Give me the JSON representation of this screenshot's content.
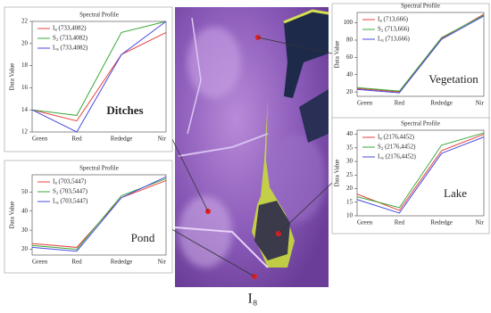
{
  "chart_data": [
    {
      "type": "line",
      "title": "Spectral Profile",
      "y_label": "Data Value",
      "annotation": "Ditches",
      "categories": [
        "Green",
        "Red",
        "Rededge",
        "Nir"
      ],
      "series": [
        {
          "name": "I₈ (733,4082)",
          "color": "#e8413c",
          "values": [
            14,
            13,
            19,
            21
          ]
        },
        {
          "name": "S₂ (733,4082)",
          "color": "#3aa83a",
          "values": [
            14,
            13.5,
            21,
            22
          ]
        },
        {
          "name": "L₈ (733,4082)",
          "color": "#4a4ae0",
          "values": [
            14,
            12,
            19,
            22
          ]
        }
      ],
      "ylim": [
        12,
        22
      ],
      "yticks": [
        12,
        14,
        16,
        18,
        20,
        22
      ]
    },
    {
      "type": "line",
      "title": "Spectral Profile",
      "y_label": "Data Value",
      "annotation": "Vegetation",
      "categories": [
        "Green",
        "Red",
        "Rededge",
        "Nir"
      ],
      "series": [
        {
          "name": "I₈ (713,666)",
          "color": "#e8413c",
          "values": [
            24,
            20,
            82,
            110
          ]
        },
        {
          "name": "S₂ (713,666)",
          "color": "#3aa83a",
          "values": [
            25,
            21,
            83,
            109
          ]
        },
        {
          "name": "L₈ (713,666)",
          "color": "#4a4ae0",
          "values": [
            23,
            19,
            81,
            108
          ]
        }
      ],
      "ylim": [
        15,
        112
      ],
      "yticks": [
        20,
        40,
        60,
        80,
        100
      ]
    },
    {
      "type": "line",
      "title": "Spectral Profile",
      "y_label": "Data Value",
      "annotation": "Pond",
      "categories": [
        "Green",
        "Red",
        "Rededge",
        "Nir"
      ],
      "series": [
        {
          "name": "I₈ (703,5447)",
          "color": "#e8413c",
          "values": [
            23,
            21,
            47,
            56
          ]
        },
        {
          "name": "S₂ (703,5447)",
          "color": "#3aa83a",
          "values": [
            22,
            20,
            48,
            57
          ]
        },
        {
          "name": "L₈ (703,5447)",
          "color": "#4a4ae0",
          "values": [
            21,
            19,
            47,
            58
          ]
        }
      ],
      "ylim": [
        17,
        59
      ],
      "yticks": [
        20,
        30,
        40,
        50
      ]
    },
    {
      "type": "line",
      "title": "Spectral Profile",
      "y_label": "Data Value",
      "annotation": "Lake",
      "categories": [
        "Green",
        "Red",
        "Rededge",
        "Nir"
      ],
      "series": [
        {
          "name": "I₈ (2176,4452)",
          "color": "#e8413c",
          "values": [
            18,
            12,
            34,
            40
          ]
        },
        {
          "name": "S₂ (2176,4452)",
          "color": "#3aa83a",
          "values": [
            17,
            13,
            36,
            40.5
          ]
        },
        {
          "name": "L₈ (2176,4452)",
          "color": "#4a4ae0",
          "values": [
            16,
            11,
            33,
            39
          ]
        }
      ],
      "ylim": [
        10,
        41.5
      ],
      "yticks": [
        10,
        15,
        20,
        25,
        30,
        35,
        40
      ]
    }
  ],
  "image_caption": "I₈"
}
